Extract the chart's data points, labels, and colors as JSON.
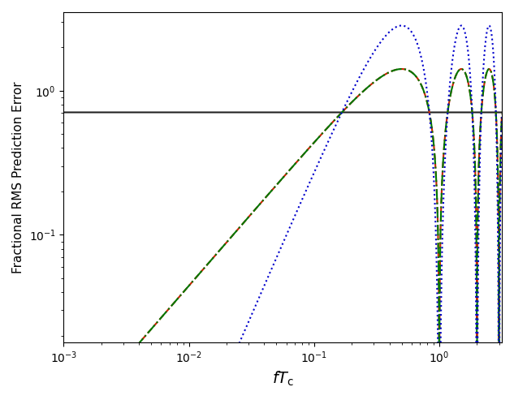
{
  "xlabel": "$fT_{\\mathrm{c}}$",
  "ylabel": "Fractional RMS Prediction Error",
  "xlim": [
    0.001,
    3.16
  ],
  "ylim": [
    0.018,
    3.5
  ],
  "lines": [
    {
      "color": "#222222",
      "linestyle": "-",
      "linewidth": 1.5
    },
    {
      "color": "#cc2200",
      "linestyle": "--",
      "linewidth": 1.5,
      "dashes": [
        6,
        3
      ]
    },
    {
      "color": "#007700",
      "linestyle": "-.",
      "linewidth": 1.5
    },
    {
      "color": "#0000cc",
      "linestyle": ":",
      "linewidth": 1.5,
      "dotsize": 3
    }
  ],
  "xlabel_fontsize": 14,
  "ylabel_fontsize": 11,
  "tick_fontsize": 10,
  "figsize": [
    6.33,
    4.93
  ],
  "dpi": 100
}
